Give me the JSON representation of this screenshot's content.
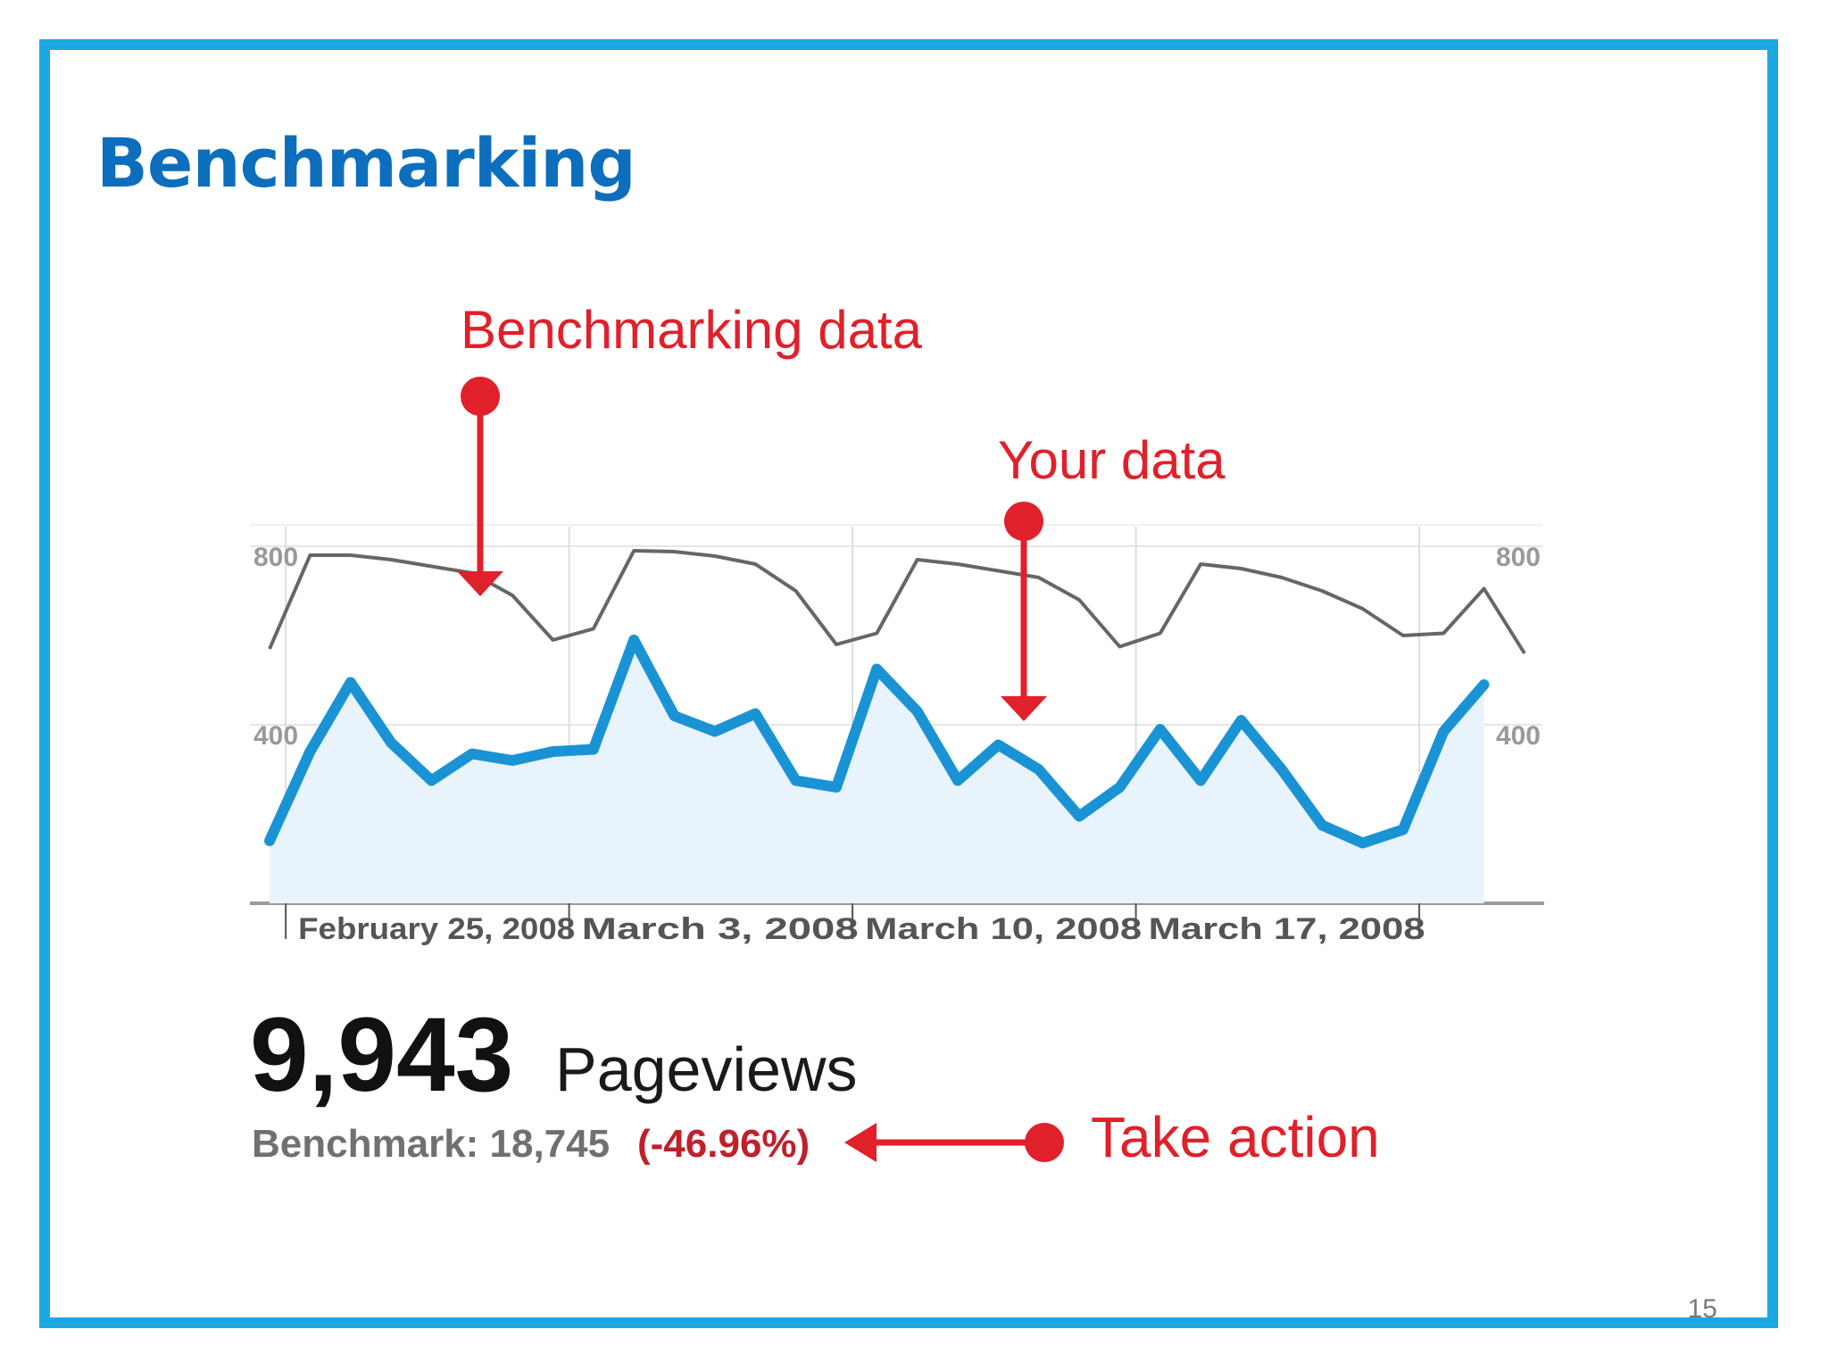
{
  "slide": {
    "title": "Benchmarking",
    "page_number": "15"
  },
  "colors": {
    "frame": "#1ca8e3",
    "title": "#0d6ebd",
    "your_data": "#1a93d5",
    "benchmark": "#666666",
    "annotation": "#e0202a",
    "area_fill": "#e8f3fb"
  },
  "annotations": {
    "benchmark_label": "Benchmarking data",
    "your_data_label": "Your data",
    "take_action_label": "Take action"
  },
  "stats": {
    "pageviews_value": "9,943",
    "pageviews_label": "Pageviews",
    "benchmark_prefix": "Benchmark: 18,745",
    "benchmark_change": "(-46.96%)"
  },
  "chart_data": {
    "type": "line",
    "title": "",
    "xlabel": "",
    "ylabel": "",
    "ylim": [
      0,
      900
    ],
    "y_ticks": [
      400,
      800
    ],
    "y_tick_labels_left": [
      "400",
      "800"
    ],
    "y_tick_labels_right": [
      "400",
      "800"
    ],
    "x_tick_labels": [
      "February 25, 2008",
      "March 3, 2008",
      "March 10, 2008",
      "March 17, 2008"
    ],
    "x_tick_indices": [
      1,
      8,
      15,
      22
    ],
    "grid": true,
    "series": [
      {
        "role": "benchmark",
        "values": [
          570,
          780,
          780,
          770,
          755,
          740,
          690,
          590,
          615,
          790,
          788,
          778,
          760,
          700,
          580,
          605,
          770,
          760,
          745,
          730,
          680,
          575,
          605,
          760,
          750,
          730,
          700,
          660,
          600,
          605,
          705,
          560
        ]
      },
      {
        "role": "your_data",
        "values": [
          140,
          340,
          495,
          360,
          275,
          335,
          320,
          340,
          345,
          590,
          420,
          385,
          425,
          275,
          260,
          525,
          430,
          275,
          355,
          300,
          195,
          260,
          390,
          275,
          410,
          300,
          175,
          135,
          165,
          385,
          490
        ]
      }
    ]
  }
}
